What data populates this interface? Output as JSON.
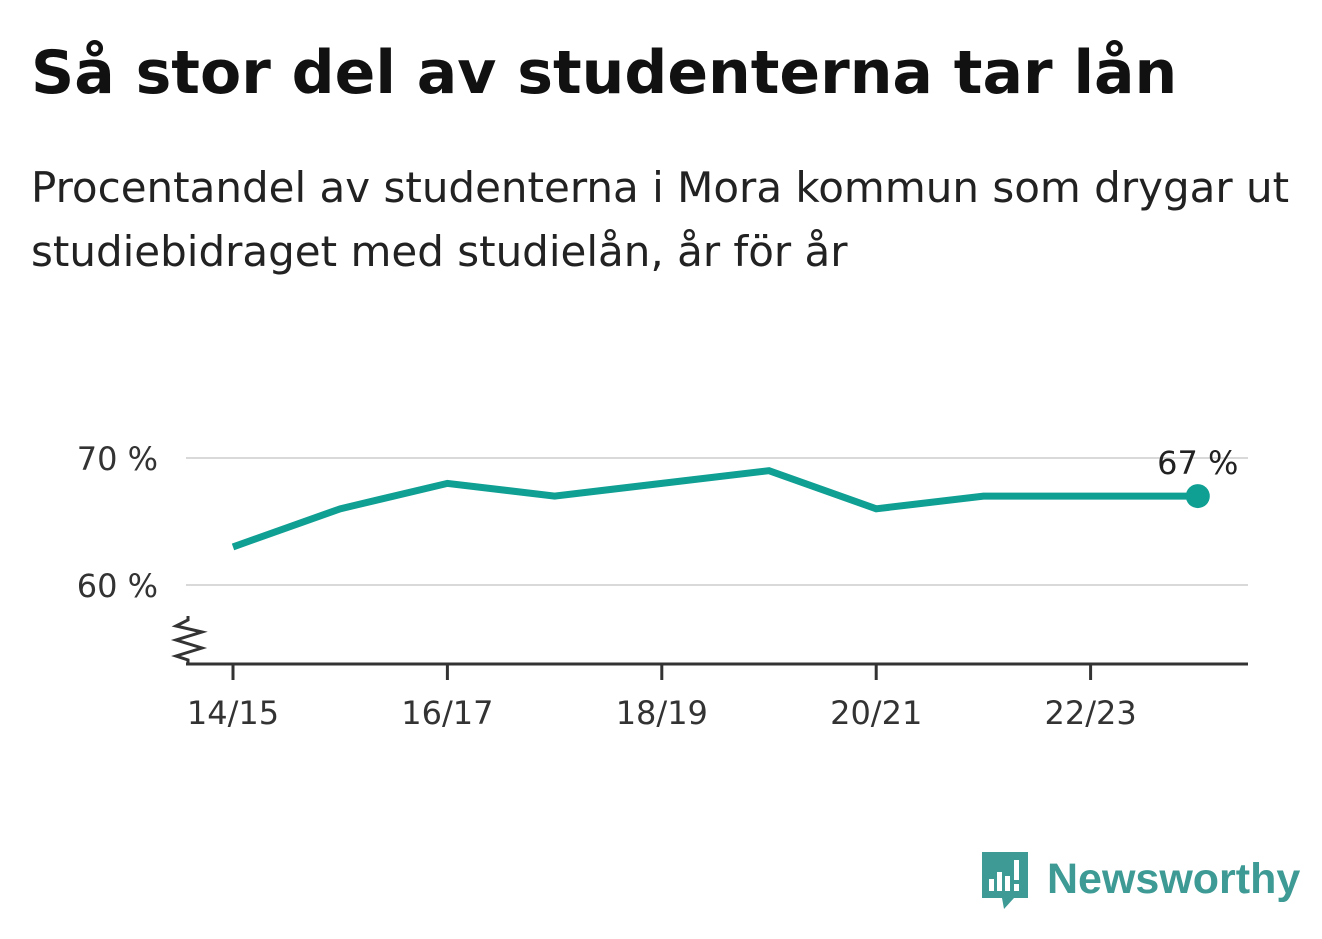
{
  "title": "Så stor del av studenterna tar lån",
  "subtitle": "Procentandel av studenterna i Mora kommun som drygar ut studiebidraget med studielån, år för år",
  "brand": {
    "name": "Newsworthy",
    "icon": "newsworthy-logo-icon",
    "color": "#3d9a94"
  },
  "chart_data": {
    "type": "line",
    "title": "Så stor del av studenterna tar lån",
    "subtitle": "Procentandel av studenterna i Mora kommun som drygar ut studiebidraget med studielån, år för år",
    "xlabel": "",
    "ylabel": "",
    "x": [
      "14/15",
      "15/16",
      "16/17",
      "17/18",
      "18/19",
      "19/20",
      "20/21",
      "21/22",
      "22/23",
      "23/24"
    ],
    "x_tick_labels": [
      "14/15",
      "16/17",
      "18/19",
      "20/21",
      "22/23"
    ],
    "series": [
      {
        "values": [
          63,
          66,
          68,
          67,
          68,
          69,
          66,
          67,
          67,
          67
        ],
        "color": "#0f9f93"
      }
    ],
    "y_ticks": [
      60,
      70
    ],
    "y_tick_labels": [
      "60 %",
      "70 %"
    ],
    "ylim": [
      53.5,
      71
    ],
    "axis_break": true,
    "grid": true,
    "end_label": "67 %"
  }
}
